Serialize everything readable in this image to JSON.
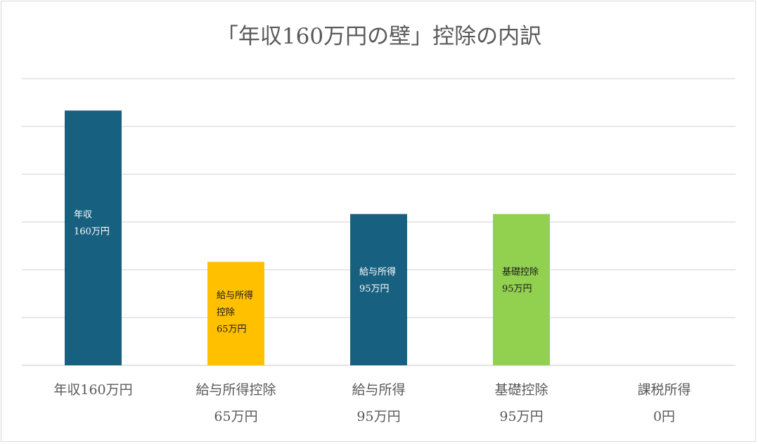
{
  "chart_data": {
    "type": "bar",
    "title": "「年収160万円の壁」控除の内訳",
    "categories": [
      [
        "年収160万円"
      ],
      [
        "給与所得控除",
        "65万円"
      ],
      [
        "給与所得",
        "95万円"
      ],
      [
        "基礎控除",
        "95万円"
      ],
      [
        "課税所得",
        "0円"
      ]
    ],
    "values": [
      160,
      65,
      95,
      95,
      0
    ],
    "bar_labels": [
      [
        "年収",
        "160万円"
      ],
      [
        "給与所得",
        "控除",
        "65万円"
      ],
      [
        "給与所得",
        "95万円"
      ],
      [
        "基礎控除",
        "95万円"
      ],
      []
    ],
    "colors": [
      "#17607f",
      "#ffc000",
      "#17607f",
      "#92d050",
      "#17607f"
    ],
    "label_colors": [
      "#ffffff",
      "#1a1a1a",
      "#ffffff",
      "#1a1a1a",
      "#ffffff"
    ],
    "ylim": [
      0,
      180
    ],
    "gridlines": 6,
    "grid": true,
    "legend": false
  }
}
